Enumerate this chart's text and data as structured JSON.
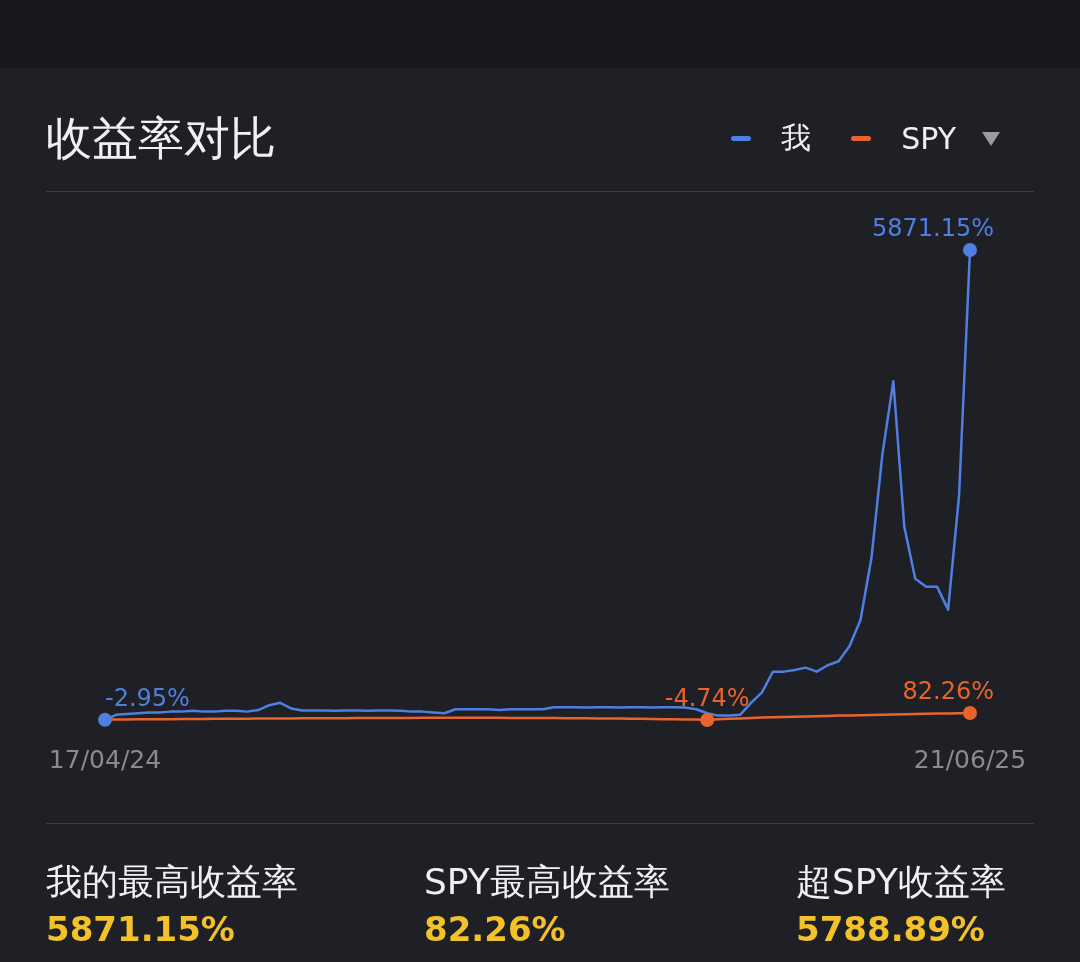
{
  "chart_data": {
    "type": "line",
    "title": "收益率对比",
    "legend": "top right",
    "grid": false,
    "categories": [
      "17/04/24",
      null,
      null,
      null,
      null,
      null,
      null,
      null,
      null,
      null,
      null,
      null,
      null,
      null,
      null,
      null,
      null,
      null,
      null,
      null,
      null,
      null,
      null,
      null,
      null,
      null,
      null,
      null,
      null,
      null,
      null,
      null,
      null,
      null,
      null,
      null,
      null,
      null,
      null,
      null,
      null,
      null,
      null,
      null,
      null,
      null,
      null,
      null,
      null,
      null,
      null,
      null,
      null,
      null,
      null,
      null,
      null,
      null,
      null,
      null,
      null,
      null,
      null,
      null,
      null,
      null,
      null,
      null,
      null,
      null,
      null,
      null,
      null,
      null,
      null,
      null,
      null,
      null,
      null,
      "21/06/25"
    ],
    "series": [
      {
        "name": "我",
        "color": "#4f7fe0",
        "values": [
          -2.95,
          60,
          70,
          80,
          90,
          90,
          100,
          100,
          110,
          100,
          100,
          110,
          110,
          100,
          120,
          180,
          210,
          140,
          115,
          115,
          115,
          110,
          115,
          115,
          110,
          115,
          115,
          110,
          100,
          100,
          90,
          80,
          130,
          130,
          130,
          130,
          120,
          130,
          130,
          130,
          130,
          155,
          155,
          155,
          150,
          155,
          155,
          150,
          155,
          155,
          150,
          155,
          155,
          150,
          130,
          80,
          50,
          50,
          60,
          210,
          340,
          600,
          600,
          620,
          650,
          600,
          680,
          730,
          920,
          1245,
          2020,
          3320,
          4230,
          2410,
          1760,
          1660,
          1660,
          1375,
          2800,
          5871.15
        ],
        "value_labels": [
          "-2.95%",
          null,
          null,
          null,
          null,
          null,
          null,
          null,
          null,
          null,
          null,
          null,
          null,
          null,
          null,
          null,
          null,
          null,
          null,
          null,
          null,
          null,
          null,
          null,
          null,
          null,
          null,
          null,
          null,
          null,
          null,
          null,
          null,
          null,
          null,
          null,
          null,
          null,
          null,
          null,
          null,
          null,
          null,
          null,
          null,
          null,
          null,
          null,
          null,
          null,
          null,
          null,
          null,
          null,
          null,
          null,
          null,
          null,
          null,
          null,
          null,
          null,
          null,
          null,
          null,
          null,
          null,
          null,
          null,
          null,
          null,
          null,
          null,
          null,
          null,
          null,
          null,
          null,
          null,
          "5871.15%"
        ]
      },
      {
        "name": "SPY",
        "color": "#e8642c",
        "values": [
          0,
          2,
          3,
          4,
          5,
          6,
          6,
          7,
          8,
          9,
          10,
          10,
          11,
          12,
          13,
          14,
          14,
          15,
          16,
          17,
          17,
          18,
          18,
          19,
          20,
          20,
          20,
          21,
          21,
          22,
          22,
          22,
          23,
          23,
          22,
          22,
          22,
          21,
          21,
          20,
          20,
          19,
          18,
          17,
          16,
          15,
          14,
          13,
          12,
          10,
          8,
          6,
          4,
          2,
          0,
          -4.74,
          5,
          10,
          15,
          20,
          25,
          30,
          33,
          36,
          40,
          43,
          46,
          50,
          52,
          55,
          58,
          60,
          63,
          66,
          69,
          72,
          75,
          78,
          80,
          82.26
        ],
        "value_labels": [
          null,
          null,
          null,
          null,
          null,
          null,
          null,
          null,
          null,
          null,
          null,
          null,
          null,
          null,
          null,
          null,
          null,
          null,
          null,
          null,
          null,
          null,
          null,
          null,
          null,
          null,
          null,
          null,
          null,
          null,
          null,
          null,
          null,
          null,
          null,
          null,
          null,
          null,
          null,
          null,
          null,
          null,
          null,
          null,
          null,
          null,
          null,
          null,
          null,
          null,
          null,
          null,
          null,
          null,
          null,
          "-4.74%",
          null,
          null,
          null,
          null,
          null,
          null,
          null,
          null,
          null,
          null,
          null,
          null,
          null,
          null,
          null,
          null,
          null,
          null,
          null,
          null,
          null,
          null,
          null,
          "82.26%"
        ]
      }
    ],
    "annotations": [
      "我的最高收益率",
      "5871.15%",
      "SPY最高收益率",
      "82.26%",
      "超SPY收益率",
      "5788.89%"
    ]
  }
}
